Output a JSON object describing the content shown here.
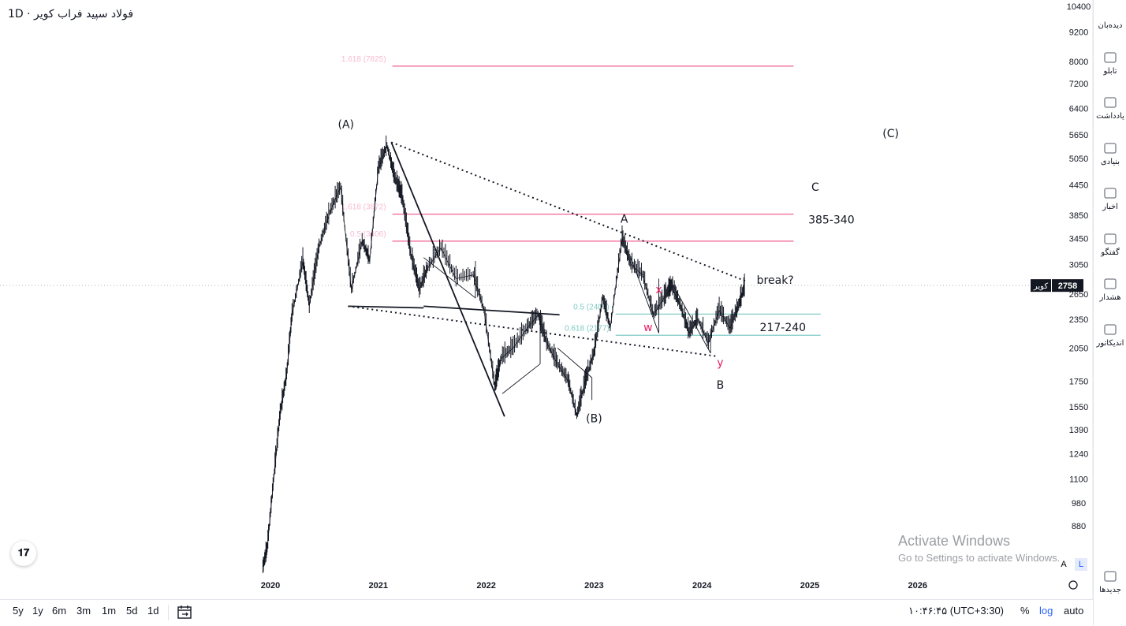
{
  "symbol": {
    "title": "فولاد سپید فراب کویر · 1D"
  },
  "chart_data": {
    "type": "candlestick-line",
    "y_scale": "log",
    "ylim": [
      700,
      10400
    ],
    "x_range": [
      2019.85,
      2026.1
    ],
    "price_ticks": [
      10400,
      9200,
      8000,
      7200,
      6400,
      5650,
      5050,
      4450,
      3850,
      3450,
      3050,
      2650,
      2350,
      2050,
      1750,
      1550,
      1390,
      1240,
      1100,
      980,
      880
    ],
    "time_ticks": [
      {
        "label": "2020",
        "x": 2020.0
      },
      {
        "label": "2021",
        "x": 2021.0
      },
      {
        "label": "2022",
        "x": 2022.0
      },
      {
        "label": "2023",
        "x": 2023.0
      },
      {
        "label": "2024",
        "x": 2024.0
      },
      {
        "label": "2025",
        "x": 2025.0
      },
      {
        "label": "2026",
        "x": 2026.0
      }
    ],
    "last_price": {
      "value": 2758,
      "label": "2758",
      "tag": "کویر"
    },
    "price_path": [
      [
        2019.93,
        720
      ],
      [
        2019.97,
        790
      ],
      [
        2020.03,
        1100
      ],
      [
        2020.09,
        1500
      ],
      [
        2020.15,
        1800
      ],
      [
        2020.2,
        2400
      ],
      [
        2020.3,
        3100
      ],
      [
        2020.36,
        2500
      ],
      [
        2020.45,
        3300
      ],
      [
        2020.55,
        3900
      ],
      [
        2020.65,
        4400
      ],
      [
        2020.75,
        2700
      ],
      [
        2020.85,
        3400
      ],
      [
        2020.92,
        3100
      ],
      [
        2021.0,
        4800
      ],
      [
        2021.08,
        5350
      ],
      [
        2021.15,
        4600
      ],
      [
        2021.22,
        4200
      ],
      [
        2021.3,
        3200
      ],
      [
        2021.38,
        2700
      ],
      [
        2021.46,
        3000
      ],
      [
        2021.58,
        3300
      ],
      [
        2021.72,
        2850
      ],
      [
        2021.88,
        2900
      ],
      [
        2021.98,
        2450
      ],
      [
        2022.08,
        1700
      ],
      [
        2022.14,
        1950
      ],
      [
        2022.25,
        2050
      ],
      [
        2022.38,
        2250
      ],
      [
        2022.48,
        2400
      ],
      [
        2022.56,
        2100
      ],
      [
        2022.66,
        1900
      ],
      [
        2022.76,
        1750
      ],
      [
        2022.84,
        1480
      ],
      [
        2022.92,
        1750
      ],
      [
        2023.0,
        2000
      ],
      [
        2023.08,
        2600
      ],
      [
        2023.15,
        2250
      ],
      [
        2023.26,
        3450
      ],
      [
        2023.34,
        3050
      ],
      [
        2023.45,
        2900
      ],
      [
        2023.55,
        2400
      ],
      [
        2023.65,
        2600
      ],
      [
        2023.72,
        2750
      ],
      [
        2023.8,
        2500
      ],
      [
        2023.88,
        2200
      ],
      [
        2023.96,
        2350
      ],
      [
        2024.06,
        2100
      ],
      [
        2024.16,
        2450
      ],
      [
        2024.26,
        2250
      ],
      [
        2024.34,
        2500
      ],
      [
        2024.4,
        2758
      ]
    ],
    "fib_levels": [
      {
        "label": "1.618 (7825)",
        "value": 7825,
        "x_start": 2021.13,
        "x_end": 2024.85,
        "color": "#f06292",
        "text_color": "#f8bbd0"
      },
      {
        "label": "1.618 (3872)",
        "value": 3872,
        "x_start": 2021.13,
        "x_end": 2024.85,
        "color": "#f06292",
        "text_color": "#f8bbd0"
      },
      {
        "label": "0.5 (3406)",
        "value": 3406,
        "x_start": 2021.13,
        "x_end": 2024.85,
        "color": "#f06292",
        "text_color": "#f8bbd0"
      },
      {
        "label": "0.5 (2408)",
        "value": 2408,
        "x_start": 2023.2,
        "x_end": 2025.1,
        "color": "#80cbc4",
        "text_color": "#80cbc4"
      },
      {
        "label": "0.618 (2177)",
        "value": 2177,
        "x_start": 2023.2,
        "x_end": 2025.1,
        "color": "#80cbc4",
        "text_color": "#80cbc4"
      }
    ],
    "trendlines": [
      {
        "from": [
          2021.12,
          5450
        ],
        "to": [
          2024.4,
          2820
        ],
        "style": "dotted"
      },
      {
        "from": [
          2020.72,
          2500
        ],
        "to": [
          2024.14,
          1970
        ],
        "style": "dotted"
      },
      {
        "from": [
          2021.12,
          5450
        ],
        "to": [
          2022.17,
          1480
        ],
        "style": "solid"
      },
      {
        "from": [
          2021.42,
          2500
        ],
        "to": [
          2022.68,
          2400
        ],
        "style": "solid-wedge"
      },
      {
        "from": [
          2020.72,
          2500
        ],
        "to": [
          2021.42,
          2480
        ],
        "style": "solid"
      }
    ],
    "annotations": [
      {
        "text": "(A)",
        "x": 2020.7,
        "y": 5830,
        "color": "#131722"
      },
      {
        "text": "(B)",
        "x": 2023.0,
        "y": 1440,
        "color": "#131722"
      },
      {
        "text": "(C)",
        "x": 2025.75,
        "y": 5580,
        "color": "#131722"
      },
      {
        "text": "A",
        "x": 2023.28,
        "y": 3720,
        "color": "#131722"
      },
      {
        "text": "B",
        "x": 2024.17,
        "y": 1690,
        "color": "#131722"
      },
      {
        "text": "C",
        "x": 2025.05,
        "y": 4330,
        "color": "#131722"
      },
      {
        "text": "x",
        "x": 2023.6,
        "y": 2660,
        "color": "#e91e63"
      },
      {
        "text": "w",
        "x": 2023.5,
        "y": 2220,
        "color": "#e91e63"
      },
      {
        "text": "y",
        "x": 2024.17,
        "y": 1880,
        "color": "#e91e63"
      },
      {
        "text": "385-340",
        "x": 2025.2,
        "y": 3700,
        "color": "#131722"
      },
      {
        "text": "break?",
        "x": 2024.68,
        "y": 2780,
        "color": "#131722"
      },
      {
        "text": "217-240",
        "x": 2024.75,
        "y": 2220,
        "color": "#131722"
      }
    ]
  },
  "watermark": {
    "line1": "Activate Windows",
    "line2": "Go to Settings to activate Windows."
  },
  "scale_buttons": {
    "a": "A",
    "l": "L"
  },
  "bottom_bar": {
    "ranges": [
      "5y",
      "1y",
      "6m",
      "3m",
      "1m",
      "5d",
      "1d"
    ],
    "time": "۱۰:۴۶:۴۵ (UTC+3:30)",
    "percent": "%",
    "log": "log",
    "auto": "auto"
  },
  "sidebar": {
    "items": [
      {
        "label": "دیده‌بان",
        "icon": "watchlist-icon"
      },
      {
        "label": "تابلو",
        "icon": "board-icon"
      },
      {
        "label": "یادداشت",
        "icon": "notes-icon"
      },
      {
        "label": "بنیادی",
        "icon": "fundamentals-icon"
      },
      {
        "label": "اخبار",
        "icon": "news-icon"
      },
      {
        "label": "گفتگو",
        "icon": "chat-icon"
      },
      {
        "label": "هشدار",
        "icon": "alert-icon"
      },
      {
        "label": "اندیکاتور",
        "icon": "indicator-icon"
      },
      {
        "label": "جدیدها",
        "icon": "whats-new-icon"
      }
    ]
  },
  "colors": {
    "candle": "#131722",
    "fib_pink": "#f06292",
    "fib_teal": "#80cbc4",
    "accent": "#2962ff"
  }
}
